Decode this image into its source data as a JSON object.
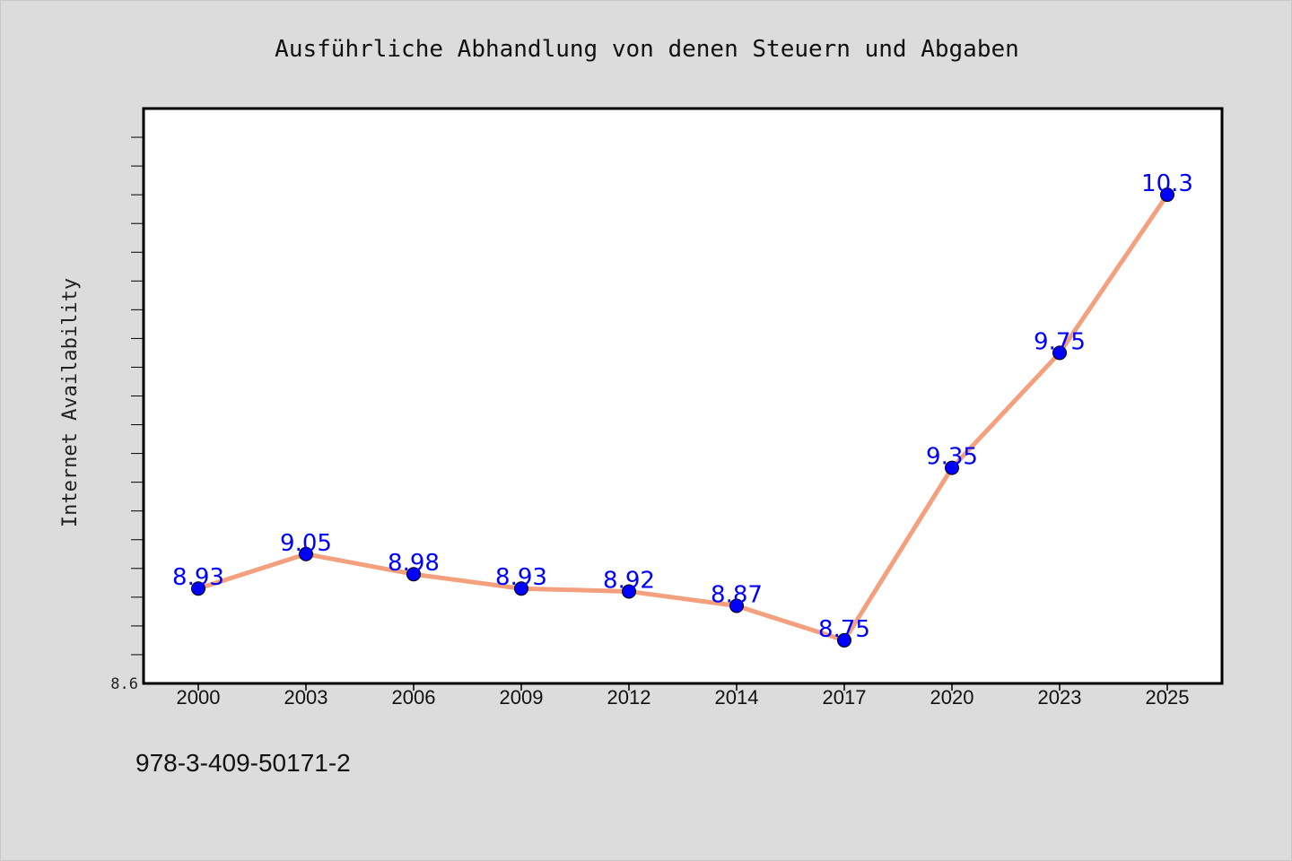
{
  "isbn": "978-3-409-50171-2",
  "colors": {
    "line": "#f4a07e",
    "marker_fill": "#0000ff",
    "label": "#0000ff",
    "plot_bg": "#ffffff",
    "page_bg": "#dcdcdc"
  },
  "chart_data": {
    "type": "line",
    "title": "Ausführliche Abhandlung von denen Steuern und Abgaben",
    "xlabel": "",
    "ylabel": "Internet Availability",
    "categories": [
      "2000",
      "2003",
      "2006",
      "2009",
      "2012",
      "2014",
      "2017",
      "2020",
      "2023",
      "2025"
    ],
    "series": [
      {
        "values": [
          8.93,
          9.05,
          8.98,
          8.93,
          8.92,
          8.87,
          8.75,
          9.35,
          9.75,
          10.3
        ],
        "labels": [
          "8.93",
          "9.05",
          "8.98",
          "8.93",
          "8.92",
          "8.87",
          "8.75",
          "9.35",
          "9.75",
          "10.3"
        ]
      }
    ],
    "ylim": [
      8.6,
      10.6
    ],
    "y_tick_labels": [
      "8.6"
    ],
    "grid": false,
    "legend": "none"
  }
}
